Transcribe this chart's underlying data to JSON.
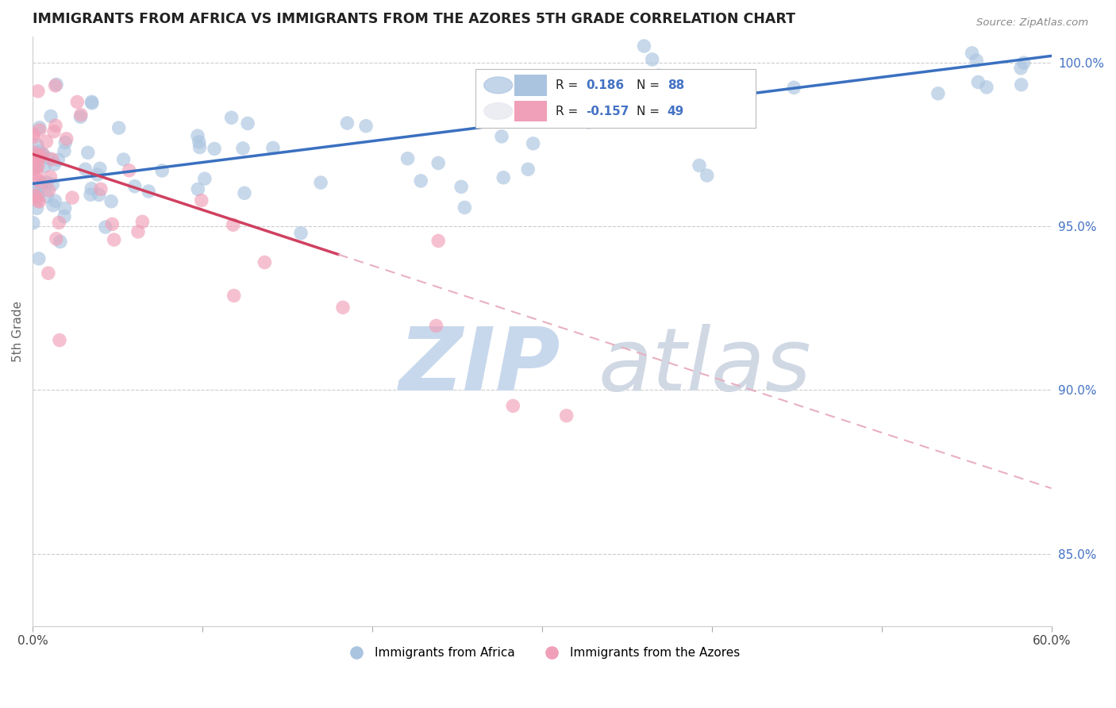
{
  "title": "IMMIGRANTS FROM AFRICA VS IMMIGRANTS FROM THE AZORES 5TH GRADE CORRELATION CHART",
  "source_text": "Source: ZipAtlas.com",
  "ylabel": "5th Grade",
  "x_min": 0.0,
  "x_max": 0.6,
  "y_min": 0.828,
  "y_max": 1.008,
  "y_ticks": [
    0.85,
    0.9,
    0.95,
    1.0
  ],
  "y_tick_labels": [
    "85.0%",
    "90.0%",
    "95.0%",
    "100.0%"
  ],
  "R_blue": 0.186,
  "N_blue": 88,
  "R_pink": -0.157,
  "N_pink": 49,
  "blue_color": "#aac4e0",
  "blue_line_color": "#3a70c0",
  "pink_color": "#f0a0b8",
  "pink_line_color": "#d04060",
  "pink_dash_color": "#e8b0c0",
  "watermark_color": "#c8d8ec",
  "legend_label_blue": "Immigrants from Africa",
  "legend_label_pink": "Immigrants from the Azores",
  "blue_r_color": "#4472c4",
  "pink_r_color": "#4472c4",
  "legend_text_color": "#222222"
}
